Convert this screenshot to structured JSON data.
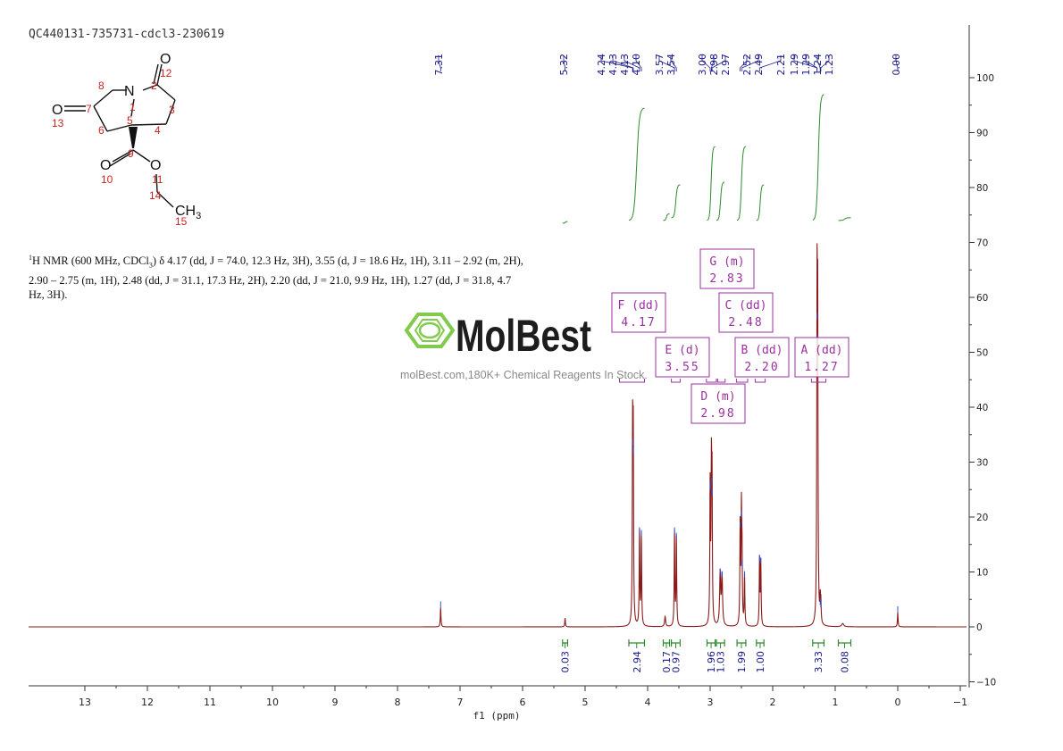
{
  "sample_id": "QC440131-735731-cdcl3-230619",
  "nmr_description": {
    "prefix_sup": "1",
    "prefix": "H NMR (600 MHz, CDCl",
    "prefix_sub": "3",
    "body": ") δ 4.17 (dd, J = 74.0, 12.3 Hz, 3H), 3.55 (d, J = 18.6 Hz, 1H), 3.11 – 2.92 (m, 2H), 2.90 – 2.75 (m, 1H), 2.48 (dd, J = 31.1, 17.3 Hz, 2H), 2.20 (dd, J = 21.0, 9.9 Hz, 1H), 1.27 (dd, J = 31.8, 4.7 Hz, 3H)."
  },
  "watermark": {
    "brand": "MolBest",
    "url_text": "molBest.com,180K+ Chemical Reagents In Stock.",
    "color": "#7ac943"
  },
  "molecule": {
    "atoms": [
      {
        "label": "O",
        "num": "12"
      },
      {
        "label": "N",
        "num": "1"
      },
      {
        "label": "",
        "num": "2"
      },
      {
        "label": "",
        "num": "3"
      },
      {
        "label": "",
        "num": "4"
      },
      {
        "label": "",
        "num": "5"
      },
      {
        "label": "",
        "num": "6"
      },
      {
        "label": "",
        "num": "7"
      },
      {
        "label": "",
        "num": "8"
      },
      {
        "label": "",
        "num": "9"
      },
      {
        "label": "O",
        "num": "10"
      },
      {
        "label": "O",
        "num": "11"
      },
      {
        "label": "O",
        "num": "13"
      },
      {
        "label": "",
        "num": "14"
      },
      {
        "label": "CH",
        "num": "15",
        "sub": "3"
      }
    ]
  },
  "colors": {
    "spectrum": "#8b1a1a",
    "integral": "#2e8b2e",
    "peak_label": "#1a1a8b",
    "box": "#9b30a0",
    "atom_num": "#cc2222"
  },
  "chart_data": {
    "type": "line",
    "xlabel": "f1 (ppm)",
    "x_reversed": true,
    "xlim": [
      13.9,
      -1.1
    ],
    "x_ticks": [
      "13",
      "12",
      "11",
      "10",
      "9",
      "8",
      "7",
      "6",
      "5",
      "4",
      "3",
      "2",
      "1",
      "0",
      "-1"
    ],
    "ylim": [
      -10,
      100
    ],
    "y_ticks": [
      "-10",
      "0",
      "10",
      "20",
      "30",
      "40",
      "50",
      "60",
      "70",
      "80",
      "90",
      "100"
    ],
    "y_axis_position": "right",
    "peak_labels": [
      "7.31",
      "5.32",
      "4.24",
      "4.23",
      "4.13",
      "4.10",
      "3.57",
      "3.54",
      "3.00",
      "2.98",
      "2.97",
      "2.52",
      "2.49",
      "2.21",
      "1.29",
      "1.29",
      "1.24",
      "1.23",
      "0.00"
    ],
    "peaks": [
      {
        "ppm": 7.31,
        "height": 3.5,
        "width": 0.006
      },
      {
        "ppm": 5.32,
        "height": 1.6,
        "width": 0.006
      },
      {
        "ppm": 4.24,
        "height": 33.0,
        "width": 0.006
      },
      {
        "ppm": 4.23,
        "height": 31.5,
        "width": 0.006
      },
      {
        "ppm": 4.13,
        "height": 17.0,
        "width": 0.006
      },
      {
        "ppm": 4.1,
        "height": 16.5,
        "width": 0.006
      },
      {
        "ppm": 3.72,
        "height": 1.8,
        "width": 0.01
      },
      {
        "ppm": 3.57,
        "height": 17.0,
        "width": 0.006
      },
      {
        "ppm": 3.54,
        "height": 16.0,
        "width": 0.006
      },
      {
        "ppm": 3.0,
        "height": 25.0,
        "width": 0.006
      },
      {
        "ppm": 2.98,
        "height": 26.0,
        "width": 0.006
      },
      {
        "ppm": 2.97,
        "height": 24.0,
        "width": 0.006
      },
      {
        "ppm": 2.84,
        "height": 9.5,
        "width": 0.01
      },
      {
        "ppm": 2.81,
        "height": 9.0,
        "width": 0.01
      },
      {
        "ppm": 2.52,
        "height": 18.0,
        "width": 0.006
      },
      {
        "ppm": 2.5,
        "height": 20.0,
        "width": 0.006
      },
      {
        "ppm": 2.49,
        "height": 11.0,
        "width": 0.006
      },
      {
        "ppm": 2.45,
        "height": 9.0,
        "width": 0.006
      },
      {
        "ppm": 2.21,
        "height": 12.0,
        "width": 0.006
      },
      {
        "ppm": 2.19,
        "height": 11.5,
        "width": 0.006
      },
      {
        "ppm": 1.29,
        "height": 56.0,
        "width": 0.006
      },
      {
        "ppm": 1.28,
        "height": 52.0,
        "width": 0.006
      },
      {
        "ppm": 1.24,
        "height": 4.0,
        "width": 0.006
      },
      {
        "ppm": 1.23,
        "height": 3.5,
        "width": 0.006
      },
      {
        "ppm": 0.88,
        "height": 0.6,
        "width": 0.02
      },
      {
        "ppm": 0.0,
        "height": 2.6,
        "width": 0.006
      }
    ],
    "multiplets": [
      {
        "letter": "A",
        "type": "(dd)",
        "shift": "1.27"
      },
      {
        "letter": "B",
        "type": "(dd)",
        "shift": "2.20"
      },
      {
        "letter": "C",
        "type": "(dd)",
        "shift": "2.48"
      },
      {
        "letter": "D",
        "type": "(m)",
        "shift": "2.98"
      },
      {
        "letter": "E",
        "type": "(d)",
        "shift": "3.55"
      },
      {
        "letter": "F",
        "type": "(dd)",
        "shift": "4.17"
      },
      {
        "letter": "G",
        "type": "(m)",
        "shift": "2.83"
      }
    ],
    "multiplet_ranges": [
      {
        "from": 1.38,
        "to": 1.15
      },
      {
        "from": 2.28,
        "to": 2.12
      },
      {
        "from": 2.58,
        "to": 2.4
      },
      {
        "from": 3.06,
        "to": 2.9
      },
      {
        "from": 2.88,
        "to": 2.76
      },
      {
        "from": 3.62,
        "to": 3.48
      },
      {
        "from": 4.45,
        "to": 4.05
      }
    ],
    "integrals": [
      {
        "from": 5.36,
        "to": 5.28,
        "value": "0.03",
        "y_start": 73.5,
        "y_end": 73.8
      },
      {
        "from": 4.3,
        "to": 4.05,
        "value": "2.94",
        "y_start": 74.0,
        "y_end": 94.5
      },
      {
        "from": 3.75,
        "to": 3.65,
        "value": "0.17",
        "y_start": 74.0,
        "y_end": 75.2
      },
      {
        "from": 3.62,
        "to": 3.48,
        "value": "0.97",
        "y_start": 74.5,
        "y_end": 80.5
      },
      {
        "from": 3.05,
        "to": 2.92,
        "value": "1.96",
        "y_start": 74.0,
        "y_end": 87.5
      },
      {
        "from": 2.9,
        "to": 2.77,
        "value": "1.03",
        "y_start": 74.0,
        "y_end": 81.0
      },
      {
        "from": 2.57,
        "to": 2.43,
        "value": "1.99",
        "y_start": 74.0,
        "y_end": 87.5
      },
      {
        "from": 2.26,
        "to": 2.14,
        "value": "1.00",
        "y_start": 74.0,
        "y_end": 80.5
      },
      {
        "from": 1.36,
        "to": 1.18,
        "value": "3.33",
        "y_start": 74.0,
        "y_end": 97.0
      },
      {
        "from": 0.95,
        "to": 0.75,
        "value": "0.08",
        "y_start": 74.0,
        "y_end": 74.5
      }
    ]
  }
}
